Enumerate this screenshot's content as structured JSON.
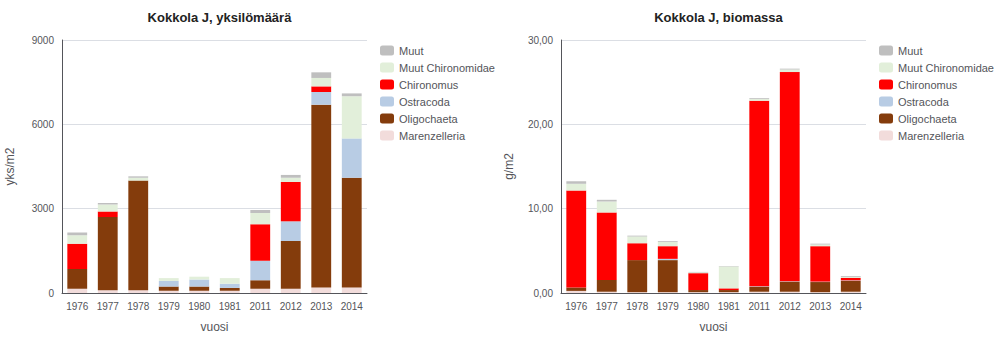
{
  "chart_data": [
    {
      "type": "bar",
      "stacked": true,
      "title": "Kokkola J, yksilömäärä",
      "xlabel": "vuosi",
      "ylabel": "yks/m2",
      "categories": [
        "1976",
        "1977",
        "1978",
        "1979",
        "1980",
        "1981",
        "2011",
        "2012",
        "2013",
        "2014"
      ],
      "series": [
        {
          "name": "Muut",
          "color": "#BFBFBF",
          "values": [
            100,
            50,
            50,
            0,
            0,
            0,
            100,
            100,
            200,
            100
          ]
        },
        {
          "name": "Muut Chironomidae",
          "color": "#E2EFDA",
          "values": [
            300,
            250,
            100,
            100,
            100,
            200,
            400,
            150,
            300,
            1500
          ]
        },
        {
          "name": "Chironomus",
          "color": "#FF0000",
          "values": [
            900,
            200,
            0,
            0,
            0,
            0,
            1300,
            1400,
            200,
            0
          ]
        },
        {
          "name": "Ostracoda",
          "color": "#B8CCE4",
          "values": [
            0,
            0,
            0,
            200,
            250,
            150,
            700,
            700,
            450,
            1400
          ]
        },
        {
          "name": "Oligochaeta",
          "color": "#843C0C",
          "values": [
            700,
            2600,
            3900,
            150,
            150,
            100,
            300,
            1700,
            6500,
            3900
          ]
        },
        {
          "name": "Marenzelleria",
          "color": "#F2DCDB",
          "values": [
            150,
            100,
            100,
            80,
            80,
            80,
            150,
            150,
            200,
            200
          ]
        }
      ],
      "ylim": [
        0,
        9000
      ],
      "yticks": [
        0,
        3000,
        6000,
        9000
      ],
      "grid": true,
      "legend": "upper right"
    },
    {
      "type": "bar",
      "stacked": true,
      "title": "Kokkola J, biomassa",
      "xlabel": "vuosi",
      "ylabel": "g/m2",
      "categories": [
        "1976",
        "1977",
        "1978",
        "1979",
        "1980",
        "1981",
        "2011",
        "2012",
        "2013",
        "2014"
      ],
      "series": [
        {
          "name": "Muut",
          "color": "#BFBFBF",
          "values": [
            0.3,
            0.2,
            0.1,
            0.1,
            0.05,
            0.05,
            0.1,
            0.1,
            0.1,
            0.1
          ]
        },
        {
          "name": "Muut Chironomidae",
          "color": "#E2EFDA",
          "values": [
            0.8,
            1.3,
            0.8,
            0.5,
            0.1,
            2.6,
            0.2,
            0.3,
            0.2,
            0.1
          ]
        },
        {
          "name": "Chironomus",
          "color": "#FF0000",
          "values": [
            11.5,
            8.0,
            2.0,
            1.5,
            2.0,
            0.2,
            22.0,
            24.8,
            4.2,
            0.3
          ]
        },
        {
          "name": "Ostracoda",
          "color": "#B8CCE4",
          "values": [
            0.0,
            0.0,
            0.0,
            0.15,
            0.0,
            0.0,
            0.05,
            0.05,
            0.05,
            0.05
          ]
        },
        {
          "name": "Oligochaeta",
          "color": "#843C0C",
          "values": [
            0.4,
            1.4,
            3.8,
            3.8,
            0.25,
            0.25,
            0.6,
            1.2,
            1.2,
            1.3
          ]
        },
        {
          "name": "Marenzelleria",
          "color": "#F2DCDB",
          "values": [
            0.25,
            0.15,
            0.1,
            0.1,
            0.1,
            0.1,
            0.15,
            0.15,
            0.1,
            0.15
          ]
        }
      ],
      "ylim": [
        0,
        30
      ],
      "yticks": [
        {
          "value": 0,
          "label": "0,00"
        },
        {
          "value": 10,
          "label": "10,00"
        },
        {
          "value": 20,
          "label": "20,00"
        },
        {
          "value": 30,
          "label": "30,00"
        }
      ],
      "grid": true,
      "legend": "upper right"
    }
  ]
}
